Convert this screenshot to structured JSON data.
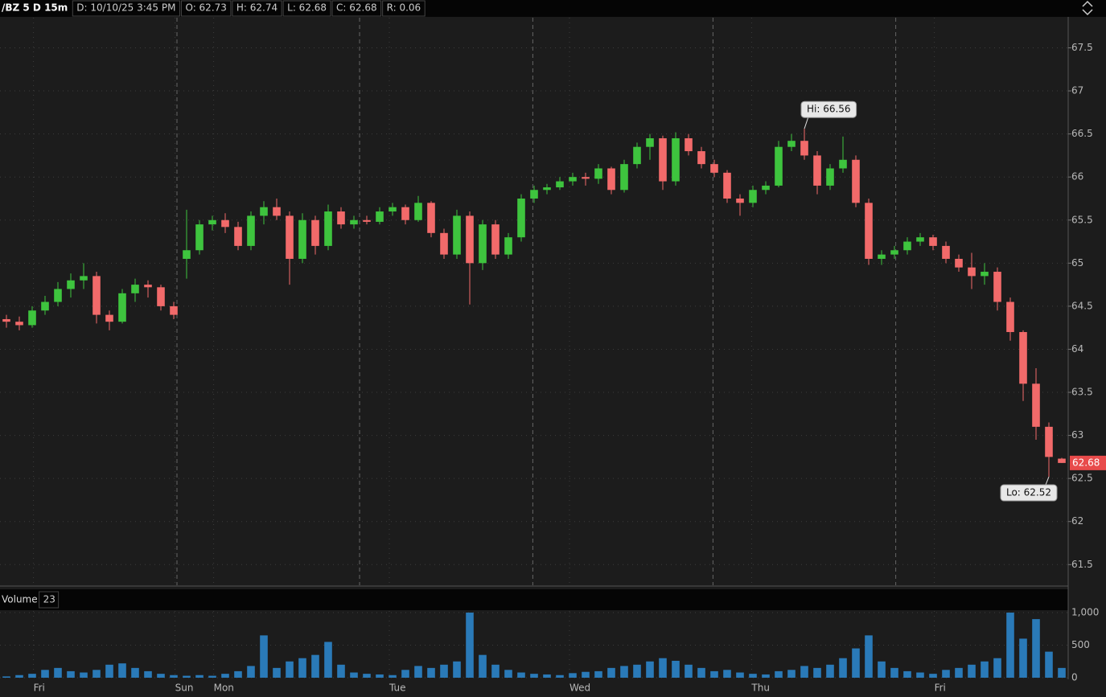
{
  "chart_data": {
    "type": "candlestick",
    "title": "/BZ 5 D 15m",
    "info_fields": [
      "D: 10/10/25 3:45 PM",
      "O: 62.73",
      "H: 62.74",
      "L: 62.68",
      "C: 62.68",
      "R: 0.06"
    ],
    "up_color": "#3ec43e",
    "down_color": "#f26a6a",
    "xlim": [
      0,
      83
    ],
    "xticks": [
      {
        "value": 2.6,
        "label": "Fri"
      },
      {
        "value": 13.6,
        "label": "Sun"
      },
      {
        "value": 16.6,
        "label": "Mon"
      },
      {
        "value": 30.25,
        "label": "Tue"
      },
      {
        "value": 44.25,
        "label": "Wed"
      },
      {
        "value": 58.4,
        "label": "Thu"
      },
      {
        "value": 72.6,
        "label": "Fri"
      }
    ],
    "session_breaks": [
      13.75,
      27.94,
      41.4,
      55.4,
      69.6
    ],
    "ylim": [
      61.26,
      67.85
    ],
    "yticks": [
      61.5,
      62,
      62.5,
      63,
      63.5,
      64,
      64.5,
      65,
      65.5,
      66,
      66.5,
      67,
      67.5
    ],
    "grid": true,
    "last_price": 62.68,
    "annotations": [
      {
        "text": "Hi: 66.56",
        "x": 62,
        "y": 66.56
      },
      {
        "text": "Lo: 62.52",
        "x": 81,
        "y": 62.52
      }
    ],
    "candles": [
      [
        64.35,
        64.4,
        64.25,
        64.32
      ],
      [
        64.32,
        64.38,
        64.22,
        64.28
      ],
      [
        64.28,
        64.5,
        64.25,
        64.45
      ],
      [
        64.45,
        64.62,
        64.4,
        64.55
      ],
      [
        64.55,
        64.78,
        64.5,
        64.7
      ],
      [
        64.7,
        64.88,
        64.6,
        64.8
      ],
      [
        64.8,
        65.0,
        64.7,
        64.85
      ],
      [
        64.85,
        64.9,
        64.3,
        64.4
      ],
      [
        64.4,
        64.45,
        64.22,
        64.32
      ],
      [
        64.32,
        64.7,
        64.3,
        64.65
      ],
      [
        64.65,
        64.82,
        64.55,
        64.75
      ],
      [
        64.75,
        64.8,
        64.6,
        64.72
      ],
      [
        64.72,
        64.75,
        64.45,
        64.5
      ],
      [
        64.5,
        64.55,
        64.35,
        64.4
      ],
      [
        65.05,
        65.62,
        64.82,
        65.15
      ],
      [
        65.15,
        65.5,
        65.1,
        65.45
      ],
      [
        65.45,
        65.55,
        65.38,
        65.5
      ],
      [
        65.5,
        65.58,
        65.35,
        65.42
      ],
      [
        65.42,
        65.48,
        65.15,
        65.2
      ],
      [
        65.2,
        65.6,
        65.15,
        65.55
      ],
      [
        65.55,
        65.72,
        65.45,
        65.65
      ],
      [
        65.65,
        65.75,
        65.5,
        65.55
      ],
      [
        65.55,
        65.6,
        64.75,
        65.05
      ],
      [
        65.05,
        65.58,
        65.0,
        65.5
      ],
      [
        65.5,
        65.55,
        65.1,
        65.2
      ],
      [
        65.2,
        65.68,
        65.15,
        65.6
      ],
      [
        65.6,
        65.65,
        65.4,
        65.45
      ],
      [
        65.45,
        65.55,
        65.4,
        65.5
      ],
      [
        65.5,
        65.55,
        65.45,
        65.48
      ],
      [
        65.48,
        65.65,
        65.45,
        65.6
      ],
      [
        65.6,
        65.7,
        65.55,
        65.65
      ],
      [
        65.65,
        65.68,
        65.45,
        65.5
      ],
      [
        65.5,
        65.78,
        65.48,
        65.7
      ],
      [
        65.7,
        65.72,
        65.3,
        65.35
      ],
      [
        65.35,
        65.4,
        65.05,
        65.1
      ],
      [
        65.1,
        65.62,
        65.05,
        65.55
      ],
      [
        65.55,
        65.6,
        64.52,
        65.0
      ],
      [
        65.0,
        65.5,
        64.92,
        65.45
      ],
      [
        65.45,
        65.5,
        65.05,
        65.1
      ],
      [
        65.1,
        65.35,
        65.05,
        65.3
      ],
      [
        65.3,
        65.8,
        65.25,
        65.75
      ],
      [
        65.75,
        65.9,
        65.7,
        65.85
      ],
      [
        65.85,
        65.92,
        65.8,
        65.88
      ],
      [
        65.88,
        66.0,
        65.85,
        65.95
      ],
      [
        65.95,
        66.05,
        65.9,
        66.0
      ],
      [
        66.0,
        66.05,
        65.9,
        65.98
      ],
      [
        65.98,
        66.15,
        65.92,
        66.1
      ],
      [
        66.1,
        66.12,
        65.8,
        65.85
      ],
      [
        65.85,
        66.2,
        65.82,
        66.15
      ],
      [
        66.15,
        66.4,
        66.1,
        66.35
      ],
      [
        66.35,
        66.5,
        66.2,
        66.45
      ],
      [
        66.45,
        66.48,
        65.85,
        65.95
      ],
      [
        65.95,
        66.52,
        65.9,
        66.45
      ],
      [
        66.45,
        66.5,
        66.25,
        66.3
      ],
      [
        66.3,
        66.35,
        66.1,
        66.15
      ],
      [
        66.15,
        66.2,
        66.0,
        66.05
      ],
      [
        66.05,
        66.08,
        65.7,
        65.75
      ],
      [
        65.75,
        65.8,
        65.55,
        65.7
      ],
      [
        65.7,
        65.9,
        65.65,
        65.85
      ],
      [
        65.85,
        65.95,
        65.8,
        65.9
      ],
      [
        65.9,
        66.42,
        65.88,
        66.35
      ],
      [
        66.35,
        66.5,
        66.3,
        66.42
      ],
      [
        66.42,
        66.56,
        66.2,
        66.25
      ],
      [
        66.25,
        66.3,
        65.8,
        65.9
      ],
      [
        65.9,
        66.15,
        65.85,
        66.1
      ],
      [
        66.1,
        66.47,
        66.05,
        66.2
      ],
      [
        66.2,
        66.25,
        65.65,
        65.7
      ],
      [
        65.7,
        65.75,
        64.98,
        65.05
      ],
      [
        65.05,
        65.15,
        64.98,
        65.1
      ],
      [
        65.1,
        65.2,
        65.05,
        65.15
      ],
      [
        65.15,
        65.3,
        65.1,
        65.25
      ],
      [
        65.25,
        65.35,
        65.2,
        65.3
      ],
      [
        65.3,
        65.33,
        65.15,
        65.2
      ],
      [
        65.2,
        65.25,
        65.0,
        65.05
      ],
      [
        65.05,
        65.1,
        64.9,
        64.95
      ],
      [
        64.95,
        65.12,
        64.7,
        64.85
      ],
      [
        64.85,
        65.0,
        64.75,
        64.9
      ],
      [
        64.9,
        64.95,
        64.45,
        64.55
      ],
      [
        64.55,
        64.6,
        64.1,
        64.2
      ],
      [
        64.2,
        64.22,
        63.4,
        63.6
      ],
      [
        63.6,
        63.78,
        62.95,
        63.1
      ],
      [
        63.1,
        63.15,
        62.52,
        62.75
      ],
      [
        62.73,
        62.74,
        62.68,
        62.68
      ]
    ],
    "volume": {
      "title": "Volume",
      "current": 23,
      "color": "#2a7ab8",
      "ylim": [
        0,
        1025
      ],
      "yticks": [
        0,
        500,
        {
          "value": 1000,
          "label": "1,000"
        }
      ],
      "values": [
        20,
        40,
        60,
        120,
        150,
        100,
        80,
        120,
        200,
        220,
        150,
        100,
        60,
        40,
        30,
        40,
        30,
        60,
        100,
        180,
        650,
        150,
        250,
        300,
        350,
        550,
        200,
        80,
        60,
        50,
        40,
        120,
        180,
        150,
        200,
        250,
        1000,
        350,
        200,
        120,
        80,
        60,
        50,
        40,
        70,
        90,
        100,
        150,
        180,
        200,
        250,
        300,
        260,
        200,
        150,
        100,
        120,
        80,
        60,
        50,
        100,
        120,
        180,
        150,
        200,
        300,
        450,
        650,
        250,
        150,
        100,
        80,
        60,
        120,
        150,
        200,
        250,
        300,
        1000,
        600,
        900,
        400,
        150
      ]
    }
  }
}
